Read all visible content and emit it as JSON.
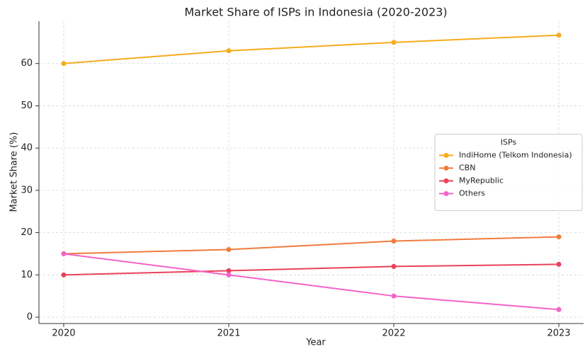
{
  "chart_data": {
    "type": "line",
    "title": "Market Share of ISPs in Indonesia (2020-2023)",
    "x_label": "Year",
    "y_label": "Market Share (%)",
    "x": [
      2020,
      2021,
      2022,
      2023
    ],
    "xlim": [
      2019.85,
      2023.15
    ],
    "xticks": [
      2020,
      2021,
      2022,
      2023
    ],
    "ylim": [
      -1.5,
      70
    ],
    "yticks": [
      0,
      10,
      20,
      30,
      40,
      50,
      60
    ],
    "grid": true,
    "legend_title": "ISPs",
    "legend_position": "center right",
    "series": [
      {
        "name": "IndiHome (Telkom Indonesia)",
        "color": "#f5ac1c",
        "values": [
          60,
          63,
          65,
          66.7
        ]
      },
      {
        "name": "CBN",
        "color": "#f07c3c",
        "values": [
          15,
          16,
          18,
          19
        ]
      },
      {
        "name": "MyRepublic",
        "color": "#e8435a",
        "values": [
          10,
          11,
          12,
          12.5
        ]
      },
      {
        "name": "Others",
        "color": "#f462c9",
        "values": [
          15,
          10,
          5,
          1.8
        ]
      }
    ]
  }
}
